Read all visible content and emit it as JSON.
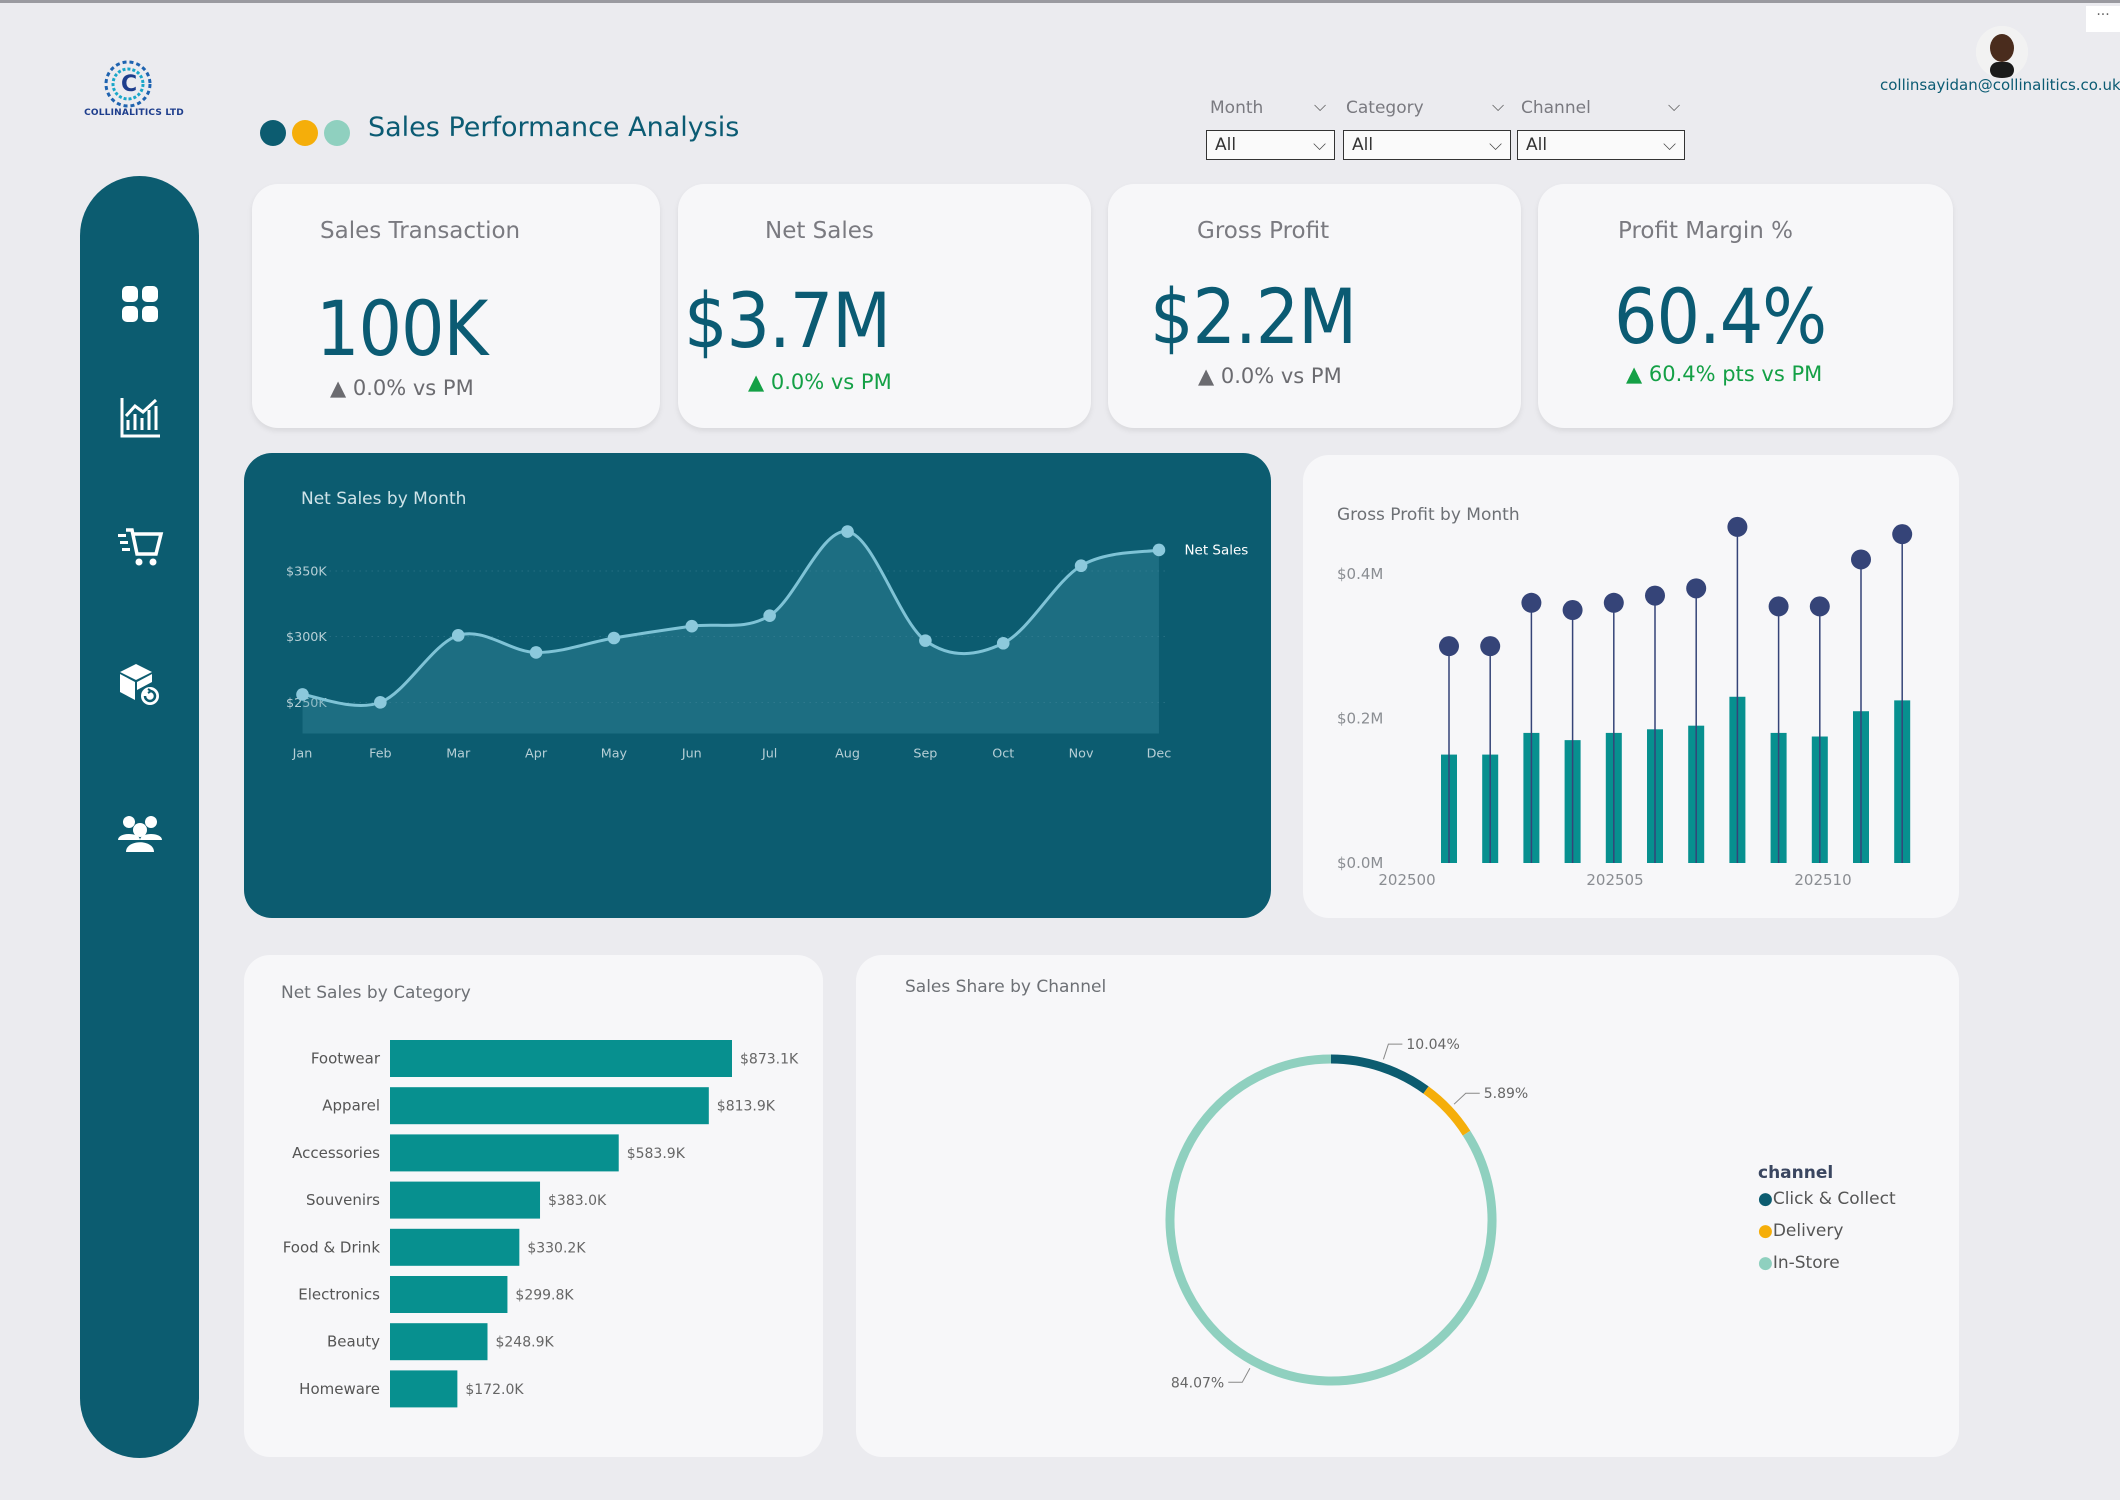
{
  "app": {
    "brand": "COLLINALITICS LTD",
    "title": "Sales Performance Analysis",
    "user_email": "collinsayidan@collinalitics.co.uk",
    "more_label": "···",
    "accent_dots": [
      "#0c5c70",
      "#f5ae0a",
      "#8fd0bf"
    ]
  },
  "filters": [
    {
      "label": "Month",
      "value": "All"
    },
    {
      "label": "Category",
      "value": "All"
    },
    {
      "label": "Channel",
      "value": "All"
    }
  ],
  "nav": [
    "dashboard-icon",
    "analytics-chart-icon",
    "shopping-cart-icon",
    "product-returns-icon",
    "customers-icon"
  ],
  "kpis": [
    {
      "title": "Sales Transaction",
      "value": "100K",
      "delta": "0.0% vs PM",
      "trend": "neutral"
    },
    {
      "title": "Net Sales",
      "value": "$3.7M",
      "delta": "0.0% vs PM",
      "trend": "up"
    },
    {
      "title": "Gross Profit",
      "value": "$2.2M",
      "delta": "0.0% vs PM",
      "trend": "neutral"
    },
    {
      "title": "Profit Margin %",
      "value": "60.4%",
      "delta": "60.4% pts vs PM",
      "trend": "up"
    }
  ],
  "colors": {
    "teal_dark": "#0c5c70",
    "teal": "#07908f",
    "navy_dot": "#354478",
    "orange": "#f5ae0a",
    "mint": "#8fd0bf",
    "up_green": "#14a046",
    "neutral_grey": "#6b6b70"
  },
  "chart_data": [
    {
      "type": "area",
      "title": "Net Sales by Month",
      "categories": [
        "Jan",
        "Feb",
        "Mar",
        "Apr",
        "May",
        "Jun",
        "Jul",
        "Aug",
        "Sep",
        "Oct",
        "Nov",
        "Dec"
      ],
      "series": [
        {
          "name": "Net Sales",
          "values": [
            256,
            250,
            301,
            288,
            299,
            308,
            316,
            380,
            297,
            295,
            354,
            366
          ]
        }
      ],
      "unit": "$K",
      "ylim": [
        240,
        385
      ],
      "yticks": [
        {
          "v": 250,
          "label": "$250K"
        },
        {
          "v": 300,
          "label": "$300K"
        },
        {
          "v": 350,
          "label": "$350K"
        }
      ],
      "legend": "right-end"
    },
    {
      "type": "bar",
      "title": "Gross Profit by Month",
      "x": [
        202501,
        202502,
        202503,
        202504,
        202505,
        202506,
        202507,
        202508,
        202509,
        202510,
        202511,
        202512
      ],
      "xticks": [
        "202500",
        "202505",
        "202510"
      ],
      "bars": [
        0.15,
        0.15,
        0.18,
        0.17,
        0.18,
        0.185,
        0.19,
        0.23,
        0.18,
        0.175,
        0.21,
        0.225
      ],
      "dots": [
        0.3,
        0.3,
        0.36,
        0.35,
        0.36,
        0.37,
        0.38,
        0.465,
        0.355,
        0.355,
        0.42,
        0.455
      ],
      "unit": "$M",
      "ylim": [
        0,
        0.48
      ],
      "yticks": [
        {
          "v": 0,
          "label": "$0.0M"
        },
        {
          "v": 0.2,
          "label": "$0.2M"
        },
        {
          "v": 0.4,
          "label": "$0.4M"
        }
      ]
    },
    {
      "type": "bar",
      "orientation": "horizontal",
      "title": "Net Sales by Category",
      "categories": [
        "Footwear",
        "Apparel",
        "Accessories",
        "Souvenirs",
        "Food & Drink",
        "Electronics",
        "Beauty",
        "Homeware"
      ],
      "values": [
        873.1,
        813.9,
        583.9,
        383.0,
        330.2,
        299.8,
        248.9,
        172.0
      ],
      "labels": [
        "$873.1K",
        "$813.9K",
        "$583.9K",
        "$383.0K",
        "$330.2K",
        "$299.8K",
        "$248.9K",
        "$172.0K"
      ],
      "xmax": 873.1
    },
    {
      "type": "pie",
      "style": "donut",
      "title": "Sales Share by Channel",
      "legend_title": "channel",
      "legend": "right",
      "slices": [
        {
          "name": "Click & Collect",
          "value": 10.04,
          "label": "10.04%",
          "color": "#0c5c70"
        },
        {
          "name": "Delivery",
          "value": 5.89,
          "label": "5.89%",
          "color": "#f5ae0a"
        },
        {
          "name": "In-Store",
          "value": 84.07,
          "label": "84.07%",
          "color": "#8fd0bf"
        }
      ]
    }
  ]
}
